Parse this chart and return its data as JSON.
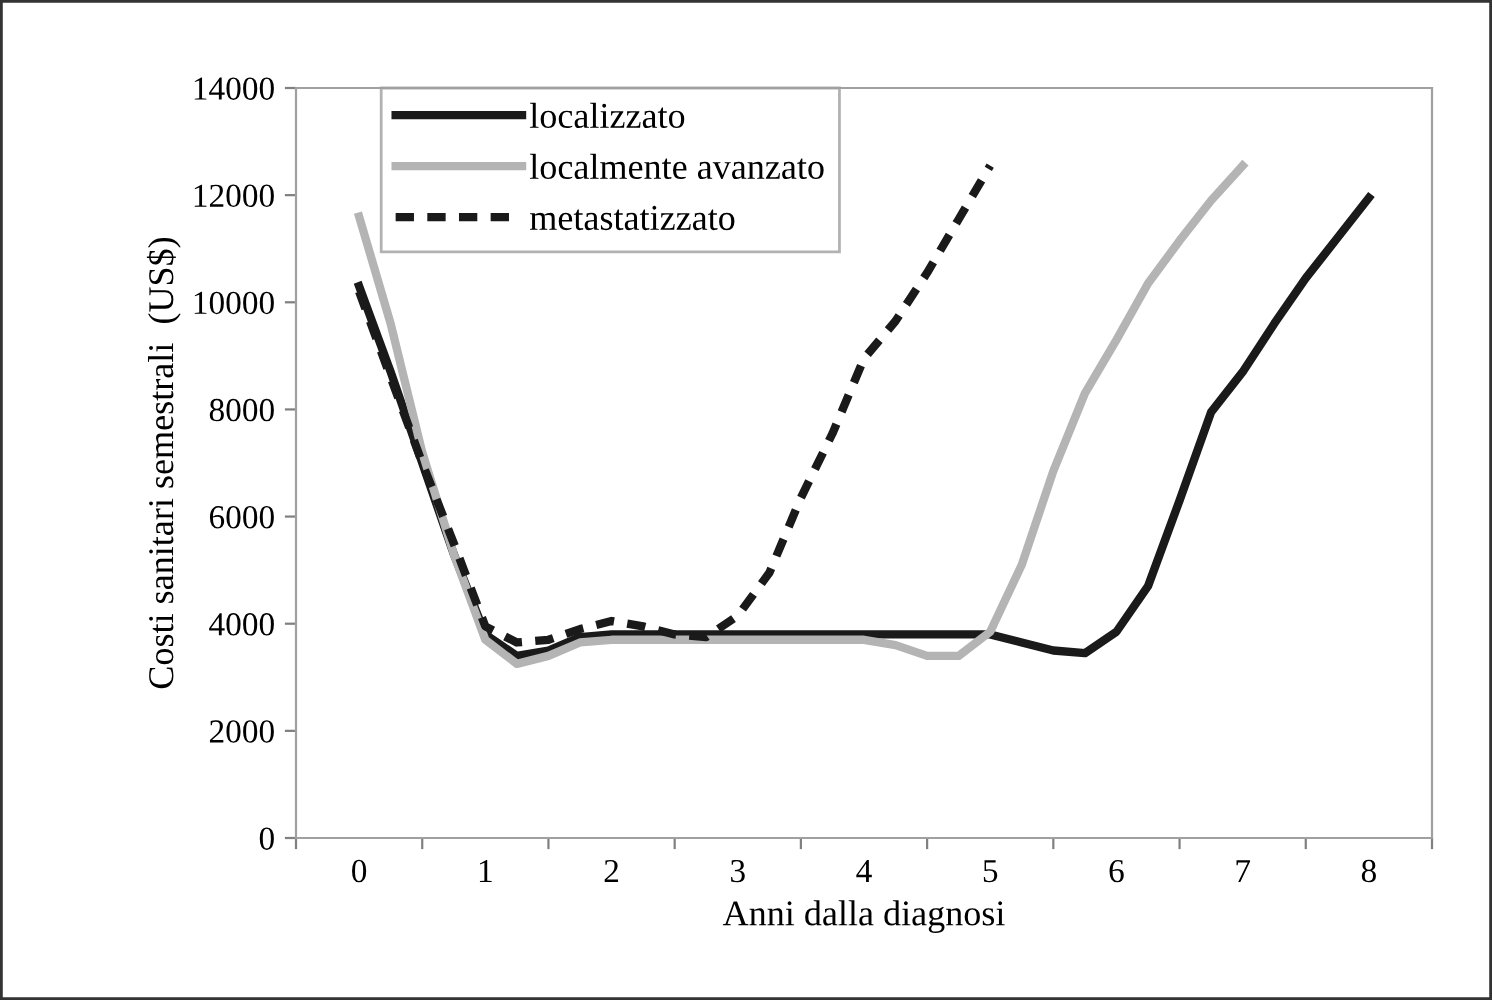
{
  "chart_data": {
    "type": "line",
    "xlabel": "Anni dalla diagnosi",
    "ylabel": "Costi sanitari semestrali  (US$)",
    "xlim": [
      -0.5,
      8.5
    ],
    "ylim": [
      0,
      14000
    ],
    "xticks": [
      {
        "value": -0.5,
        "label": null
      },
      0,
      {
        "value": 0.5,
        "label": null
      },
      1,
      {
        "value": 1.5,
        "label": null
      },
      2,
      {
        "value": 2.5,
        "label": null
      },
      3,
      {
        "value": 3.5,
        "label": null
      },
      4,
      {
        "value": 4.5,
        "label": null
      },
      5,
      {
        "value": 5.5,
        "label": null
      },
      6,
      {
        "value": 6.5,
        "label": null
      },
      7,
      {
        "value": 7.5,
        "label": null
      },
      8,
      {
        "value": 8.5,
        "label": null
      }
    ],
    "yticks": [
      0,
      2000,
      4000,
      6000,
      8000,
      10000,
      12000,
      14000
    ],
    "grid": false,
    "legend": "top left",
    "marker": "none",
    "series": [
      {
        "name": "localizzato",
        "color": "#1a1a1a",
        "line_style": "solid",
        "x": [
          0,
          0.25,
          0.5,
          0.75,
          1,
          1.25,
          1.5,
          1.75,
          2,
          2.5,
          3,
          3.5,
          4,
          4.5,
          5,
          5.25,
          5.5,
          5.75,
          6,
          6.25,
          6.5,
          6.75,
          7,
          7.25,
          7.5,
          7.75,
          8
        ],
        "values": [
          10300,
          8700,
          7000,
          5300,
          3800,
          3400,
          3500,
          3750,
          3800,
          3800,
          3800,
          3800,
          3800,
          3800,
          3800,
          3650,
          3500,
          3450,
          3850,
          4700,
          6300,
          7950,
          8700,
          9600,
          10450,
          11200,
          11950
        ]
      },
      {
        "name": "localmente avanzato",
        "color": "#b4b4b4",
        "line_style": "solid",
        "x": [
          0,
          0.25,
          0.5,
          0.75,
          1,
          1.25,
          1.5,
          1.75,
          2,
          2.5,
          3,
          3.5,
          4,
          4.25,
          4.5,
          4.75,
          5,
          5.25,
          5.5,
          5.75,
          6,
          6.25,
          6.5,
          6.75,
          7
        ],
        "values": [
          11600,
          9600,
          7200,
          5300,
          3700,
          3250,
          3400,
          3650,
          3700,
          3700,
          3700,
          3700,
          3700,
          3600,
          3400,
          3400,
          3850,
          5100,
          6850,
          8300,
          9300,
          10350,
          11150,
          11900,
          12550
        ]
      },
      {
        "name": "metastatizzato",
        "color": "#1a1a1a",
        "line_style": "dashed",
        "x": [
          0,
          0.5,
          0.75,
          1,
          1.25,
          1.5,
          1.75,
          2,
          2.25,
          2.5,
          2.75,
          3,
          3.25,
          3.5,
          3.75,
          4,
          4.25,
          4.5,
          4.75,
          5
        ],
        "values": [
          10200,
          7000,
          5500,
          3950,
          3650,
          3700,
          3900,
          4050,
          3950,
          3800,
          3750,
          4150,
          4950,
          6350,
          7550,
          8950,
          9650,
          10550,
          11550,
          12550
        ]
      }
    ]
  }
}
